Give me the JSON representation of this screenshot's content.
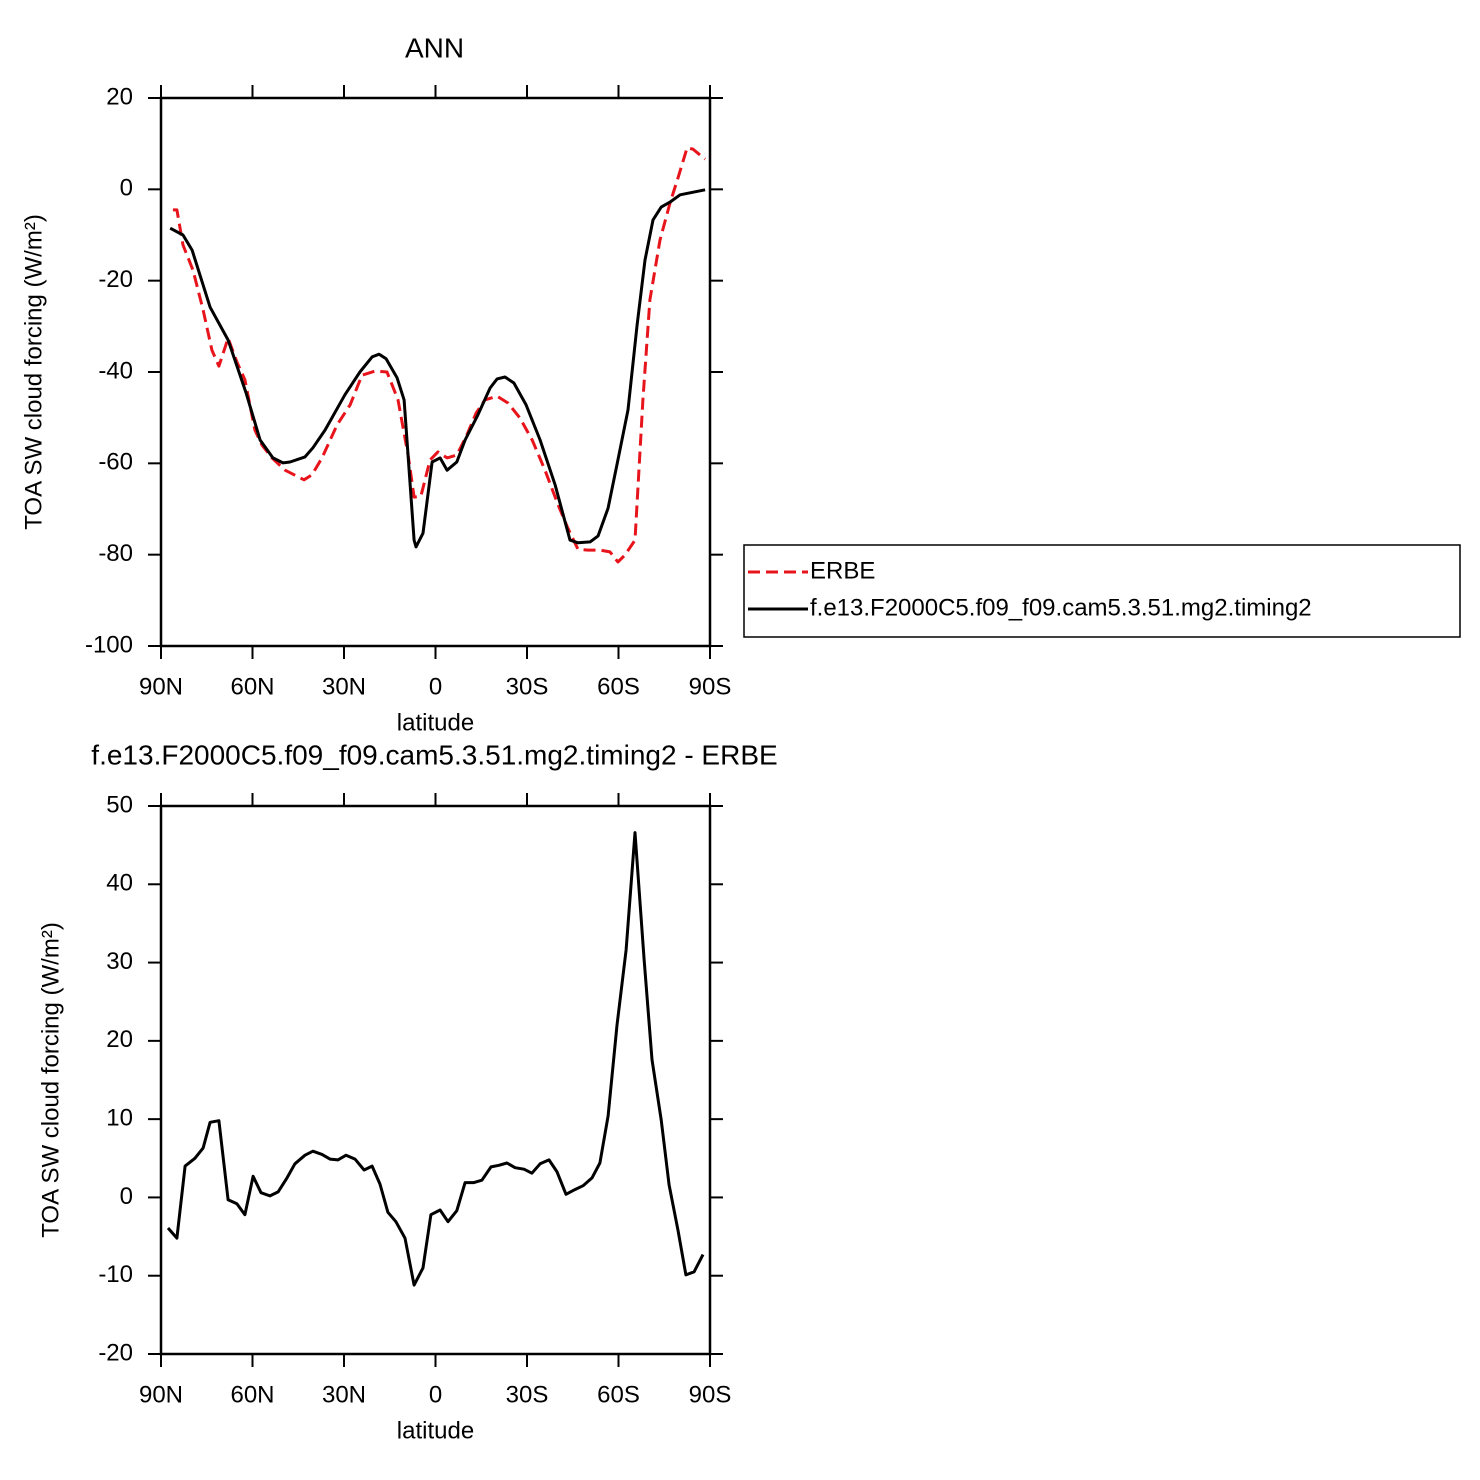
{
  "chart_data": [
    {
      "type": "line",
      "title": "ANN",
      "xlabel": "latitude",
      "ylabel": "TOA SW cloud forcing (W/m²)",
      "xlim": [
        90,
        -90
      ],
      "xticks": [
        {
          "value": 90,
          "label": "90N"
        },
        {
          "value": 60,
          "label": "60N"
        },
        {
          "value": 30,
          "label": "30N"
        },
        0,
        {
          "value": -30,
          "label": "30S"
        },
        {
          "value": -60,
          "label": "60S"
        },
        {
          "value": -90,
          "label": "90S"
        }
      ],
      "ylim": [
        -100,
        20
      ],
      "yticks": [
        -100,
        -80,
        -60,
        -40,
        -20,
        0,
        20
      ],
      "legend": "right",
      "series": [
        {
          "name": "ERBE",
          "color": "#e8141c",
          "line_style": "dashed",
          "x": [
            86.1,
            84.8,
            82.8,
            79.5,
            76.2,
            73.3,
            71.0,
            68.0,
            65.1,
            62.5,
            59.2,
            56.9,
            53.6,
            49.3,
            46.1,
            43.1,
            40.5,
            37.2,
            32.3,
            28.0,
            24.1,
            19.8,
            15.9,
            12.3,
            9.0,
            7.0,
            4.8,
            1.8,
            -0.8,
            -3.8,
            -7.0,
            -10.3,
            -13.3,
            -16.2,
            -20.2,
            -23.8,
            -27.7,
            -31.7,
            -35.9,
            -40.2,
            -43.4,
            -46.7,
            -50.0,
            -53.9,
            -57.2,
            -59.8,
            -62.1,
            -65.4,
            -68.0,
            -70.3,
            -73.6,
            -76.9,
            -79.5,
            -82.5,
            -84.4,
            -88.4
          ],
          "values": [
            -4.5,
            -4.5,
            -12.2,
            -17.7,
            -26.4,
            -35.2,
            -38.7,
            -32.6,
            -37.8,
            -41.7,
            -52.7,
            -56.0,
            -58.8,
            -61.5,
            -62.6,
            -63.6,
            -62.5,
            -58.8,
            -51.6,
            -47.2,
            -40.7,
            -39.8,
            -40.0,
            -46.1,
            -58.2,
            -67.4,
            -67.2,
            -59.3,
            -57.5,
            -58.8,
            -58.2,
            -53.8,
            -49.0,
            -46.1,
            -45.3,
            -46.8,
            -50.1,
            -54.9,
            -61.5,
            -69.1,
            -74.2,
            -78.8,
            -79.0,
            -79.0,
            -79.4,
            -81.6,
            -80.1,
            -76.8,
            -46.1,
            -24.2,
            -11.1,
            -3.0,
            2.5,
            9.1,
            8.8,
            6.6
          ]
        },
        {
          "name": "f.e13.F2000C5.f09_f09.cam5.3.51.mg2.timing2",
          "color": "#000000",
          "line_style": "solid",
          "x": [
            87.0,
            82.8,
            79.8,
            73.9,
            68.0,
            62.1,
            57.5,
            53.3,
            50.0,
            47.7,
            42.8,
            40.2,
            36.2,
            29.7,
            24.8,
            20.8,
            18.5,
            16.2,
            12.6,
            10.3,
            7.0,
            6.4,
            4.1,
            1.1,
            -1.5,
            -3.8,
            -7.0,
            -9.7,
            -13.9,
            -17.9,
            -20.2,
            -22.8,
            -25.7,
            -29.7,
            -34.3,
            -39.2,
            -44.1,
            -46.7,
            -50.7,
            -53.3,
            -56.6,
            -59.8,
            -63.1,
            -66.1,
            -68.7,
            -71.3,
            -74.0,
            -76.9,
            -80.2,
            -88.4
          ],
          "values": [
            -8.5,
            -10.0,
            -13.3,
            -25.8,
            -33.0,
            -44.6,
            -54.9,
            -58.8,
            -59.9,
            -59.7,
            -58.6,
            -56.6,
            -52.7,
            -45.0,
            -40.0,
            -36.7,
            -36.1,
            -37.1,
            -41.3,
            -46.1,
            -76.8,
            -78.3,
            -75.3,
            -59.7,
            -58.8,
            -61.5,
            -59.7,
            -54.9,
            -49.4,
            -43.5,
            -41.5,
            -41.1,
            -42.4,
            -47.2,
            -54.9,
            -64.7,
            -76.8,
            -77.4,
            -77.2,
            -75.9,
            -69.8,
            -59.3,
            -48.3,
            -29.7,
            -15.5,
            -6.7,
            -3.9,
            -2.8,
            -1.2,
            -0.1
          ]
        }
      ]
    },
    {
      "type": "line",
      "title": "f.e13.F2000C5.f09_f09.cam5.3.51.mg2.timing2 - ERBE",
      "xlabel": "latitude",
      "ylabel": "TOA SW cloud forcing (W/m²)",
      "xlim": [
        90,
        -90
      ],
      "xticks": [
        {
          "value": 90,
          "label": "90N"
        },
        {
          "value": 60,
          "label": "60N"
        },
        {
          "value": 30,
          "label": "30N"
        },
        0,
        {
          "value": -30,
          "label": "30S"
        },
        {
          "value": -60,
          "label": "60S"
        },
        {
          "value": -90,
          "label": "90S"
        }
      ],
      "ylim": [
        -20,
        50
      ],
      "yticks": [
        -20,
        -10,
        0,
        10,
        20,
        30,
        40,
        50
      ],
      "color": "#000000",
      "x": [
        87.7,
        84.8,
        82.1,
        78.9,
        76.2,
        73.9,
        71.0,
        68.0,
        65.1,
        62.5,
        59.8,
        57.2,
        54.3,
        51.6,
        48.7,
        46.1,
        42.8,
        40.2,
        37.2,
        34.6,
        32.0,
        29.3,
        26.4,
        23.4,
        20.8,
        18.2,
        15.6,
        13.0,
        10.0,
        7.0,
        4.1,
        1.5,
        -1.5,
        -4.1,
        -7.0,
        -9.7,
        -12.6,
        -15.2,
        -18.2,
        -20.8,
        -23.4,
        -26.1,
        -29.0,
        -31.6,
        -34.3,
        -37.2,
        -39.8,
        -42.8,
        -45.7,
        -48.4,
        -51.3,
        -53.9,
        -56.6,
        -59.5,
        -62.5,
        -65.4,
        -68.4,
        -71.0,
        -74.0,
        -76.6,
        -79.5,
        -82.1,
        -84.8,
        -87.7
      ],
      "values": [
        -3.9,
        -5.2,
        4.0,
        5.0,
        6.3,
        9.6,
        9.8,
        -0.3,
        -0.8,
        -2.2,
        2.7,
        0.6,
        0.2,
        0.7,
        2.5,
        4.3,
        5.4,
        5.9,
        5.5,
        4.9,
        4.8,
        5.4,
        4.9,
        3.5,
        4.0,
        1.7,
        -1.9,
        -3.1,
        -5.2,
        -11.2,
        -9.0,
        -2.2,
        -1.6,
        -3.1,
        -1.7,
        1.9,
        1.9,
        2.2,
        3.9,
        4.1,
        4.4,
        3.8,
        3.6,
        3.1,
        4.3,
        4.8,
        3.3,
        0.4,
        1.0,
        1.5,
        2.5,
        4.4,
        10.4,
        22.0,
        31.6,
        46.6,
        30.4,
        17.6,
        9.9,
        1.6,
        -4.2,
        -9.9,
        -9.5,
        -7.3
      ]
    }
  ]
}
